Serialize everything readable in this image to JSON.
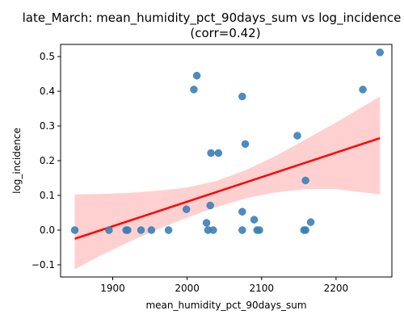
{
  "chart_data": {
    "type": "scatter",
    "title_line1": "late_March: mean_humidity_pct_90days_sum vs log_incidence",
    "title_line2": "(corr=0.42)",
    "xlabel": "mean_humidity_pct_90days_sum",
    "ylabel": "log_incidence",
    "xlim": [
      1830,
      2275
    ],
    "ylim": [
      -0.135,
      0.535
    ],
    "x_ticks": [
      1900,
      2000,
      2100,
      2200
    ],
    "y_ticks": [
      -0.1,
      0.0,
      0.1,
      0.2,
      0.3,
      0.4,
      0.5
    ],
    "y_tick_labels": [
      "−0.1",
      "0.0",
      "0.1",
      "0.2",
      "0.3",
      "0.4",
      "0.5"
    ],
    "grid": false,
    "legend": "none",
    "points": [
      {
        "x": 1849,
        "y": 0.0
      },
      {
        "x": 1895,
        "y": 0.0
      },
      {
        "x": 1918,
        "y": 0.0
      },
      {
        "x": 1920,
        "y": 0.0
      },
      {
        "x": 1938,
        "y": 0.0
      },
      {
        "x": 1952,
        "y": 0.0
      },
      {
        "x": 1975,
        "y": 0.0
      },
      {
        "x": 1999,
        "y": 0.06
      },
      {
        "x": 2009,
        "y": 0.405
      },
      {
        "x": 2013,
        "y": 0.445
      },
      {
        "x": 2026,
        "y": 0.021
      },
      {
        "x": 2028,
        "y": 0.0
      },
      {
        "x": 2031,
        "y": 0.071
      },
      {
        "x": 2032,
        "y": 0.222
      },
      {
        "x": 2035,
        "y": 0.0
      },
      {
        "x": 2042,
        "y": 0.222
      },
      {
        "x": 2074,
        "y": 0.385
      },
      {
        "x": 2074,
        "y": 0.053
      },
      {
        "x": 2074,
        "y": 0.0
      },
      {
        "x": 2078,
        "y": 0.248
      },
      {
        "x": 2090,
        "y": 0.03
      },
      {
        "x": 2094,
        "y": 0.0
      },
      {
        "x": 2097,
        "y": 0.0
      },
      {
        "x": 2148,
        "y": 0.272
      },
      {
        "x": 2157,
        "y": 0.0
      },
      {
        "x": 2159,
        "y": 0.0
      },
      {
        "x": 2159,
        "y": 0.143
      },
      {
        "x": 2166,
        "y": 0.023
      },
      {
        "x": 2236,
        "y": 0.405
      },
      {
        "x": 2259,
        "y": 0.512
      }
    ],
    "regression_line": {
      "x": [
        1849,
        2259
      ],
      "y": [
        -0.025,
        0.265
      ]
    },
    "confidence_band": {
      "x": [
        1849,
        1880,
        1920,
        1960,
        2000,
        2040,
        2080,
        2120,
        2160,
        2200,
        2259
      ],
      "lower": [
        -0.113,
        -0.077,
        -0.036,
        0.002,
        0.036,
        0.067,
        0.092,
        0.109,
        0.118,
        0.118,
        0.103
      ],
      "upper": [
        0.103,
        0.104,
        0.107,
        0.113,
        0.123,
        0.142,
        0.174,
        0.215,
        0.262,
        0.31,
        0.385
      ]
    },
    "colors": {
      "points": "#3a7fb7",
      "line": "#ff0000",
      "band": "#ffc8c8"
    }
  }
}
